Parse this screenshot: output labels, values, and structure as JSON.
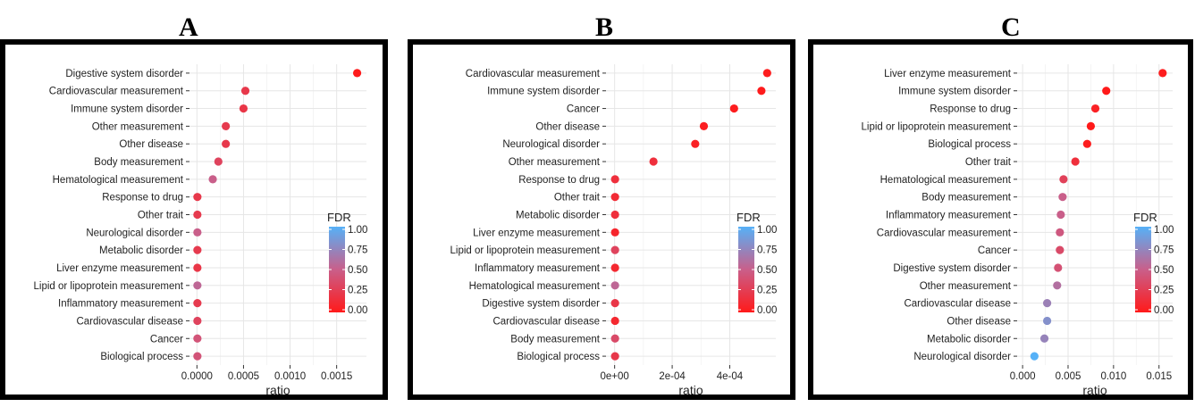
{
  "colors": {
    "low_fdr": "#ff1a1a",
    "mid_fdr": "#c95f8a",
    "high_fdr": "#56b1f7",
    "grid": "#e6e6e6",
    "frame": "#000000"
  },
  "panels": [
    {
      "letter": "A",
      "chart_data": {
        "type": "scatter",
        "title": "",
        "xlabel": "ratio",
        "ylabel": "",
        "xlim": [
          -8e-05,
          0.00182
        ],
        "xticks": [
          0.0,
          0.0005,
          0.001,
          0.0015
        ],
        "xtick_labels": [
          "0.0000",
          "0.0005",
          "0.0010",
          "0.0015"
        ],
        "legend": {
          "title": "FDR",
          "placement": "right",
          "ticks": [
            "1.00",
            "0.75",
            "0.50",
            "0.25",
            "0.00"
          ]
        },
        "categories": [
          "Digestive system disorder",
          "Cardiovascular measurement",
          "Immune system disorder",
          "Other measurement",
          "Other disease",
          "Body measurement",
          "Hematological measurement",
          "Response to drug",
          "Other trait",
          "Neurological disorder",
          "Metabolic disorder",
          "Liver enzyme measurement",
          "Lipid or lipoprotein measurement",
          "Inflammatory measurement",
          "Cardiovascular disease",
          "Cancer",
          "Biological process"
        ],
        "x": [
          0.00172,
          0.00052,
          0.0005,
          0.00031,
          0.00031,
          0.00023,
          0.00017,
          5e-06,
          5e-06,
          5e-06,
          5e-06,
          5e-06,
          5e-06,
          5e-06,
          5e-06,
          5e-06,
          5e-06
        ],
        "fdr": [
          0.01,
          0.22,
          0.2,
          0.23,
          0.22,
          0.3,
          0.5,
          0.22,
          0.23,
          0.5,
          0.23,
          0.2,
          0.55,
          0.23,
          0.3,
          0.42,
          0.42
        ]
      }
    },
    {
      "letter": "B",
      "chart_data": {
        "type": "scatter",
        "title": "",
        "xlabel": "ratio",
        "ylabel": "",
        "xlim": [
          -3e-05,
          0.00056
        ],
        "xticks": [
          0.0,
          0.0002,
          0.0004
        ],
        "xtick_labels": [
          "0e+00",
          "2e-04",
          "4e-04"
        ],
        "legend": {
          "title": "FDR",
          "placement": "right",
          "ticks": [
            "1.00",
            "0.75",
            "0.50",
            "0.25",
            "0.00"
          ]
        },
        "categories": [
          "Cardiovascular measurement",
          "Immune system disorder",
          "Cancer",
          "Other disease",
          "Neurological disorder",
          "Other measurement",
          "Response to drug",
          "Other trait",
          "Metabolic disorder",
          "Liver enzyme measurement",
          "Lipid or lipoprotein measurement",
          "Inflammatory measurement",
          "Hematological measurement",
          "Digestive system disorder",
          "Cardiovascular disease",
          "Body measurement",
          "Biological process"
        ],
        "x": [
          0.00053,
          0.00051,
          0.000415,
          0.00031,
          0.00028,
          0.000135,
          1.5e-06,
          1.5e-06,
          1.5e-06,
          1.5e-06,
          1.5e-06,
          1.5e-06,
          1.5e-06,
          1.5e-06,
          1.5e-06,
          1.5e-06,
          1.5e-06
        ],
        "fdr": [
          0.02,
          0.01,
          0.02,
          0.03,
          0.05,
          0.15,
          0.15,
          0.12,
          0.15,
          0.08,
          0.3,
          0.1,
          0.55,
          0.2,
          0.1,
          0.35,
          0.22
        ]
      }
    },
    {
      "letter": "C",
      "chart_data": {
        "type": "scatter",
        "title": "",
        "xlabel": "ratio",
        "ylabel": "",
        "xlim": [
          -0.0006,
          0.0165
        ],
        "xticks": [
          0.0,
          0.005,
          0.01,
          0.015
        ],
        "xtick_labels": [
          "0.000",
          "0.005",
          "0.010",
          "0.015"
        ],
        "legend": {
          "title": "FDR",
          "placement": "right",
          "ticks": [
            "1.00",
            "0.75",
            "0.50",
            "0.25",
            "0.00"
          ]
        },
        "categories": [
          "Liver enzyme measurement",
          "Immune system disorder",
          "Response to drug",
          "Lipid or lipoprotein measurement",
          "Biological process",
          "Other trait",
          "Hematological measurement",
          "Body measurement",
          "Inflammatory measurement",
          "Cardiovascular measurement",
          "Cancer",
          "Digestive system disorder",
          "Other measurement",
          "Cardiovascular disease",
          "Other disease",
          "Metabolic disorder",
          "Neurological disorder"
        ],
        "x": [
          0.0154,
          0.0092,
          0.008,
          0.0075,
          0.0071,
          0.0058,
          0.0045,
          0.0044,
          0.0042,
          0.0041,
          0.0041,
          0.0039,
          0.0038,
          0.0027,
          0.0027,
          0.0024,
          0.0013
        ],
        "fdr": [
          0.02,
          0.0,
          0.05,
          0.0,
          0.02,
          0.15,
          0.28,
          0.5,
          0.5,
          0.45,
          0.35,
          0.4,
          0.6,
          0.7,
          0.8,
          0.72,
          1.0
        ]
      }
    }
  ]
}
